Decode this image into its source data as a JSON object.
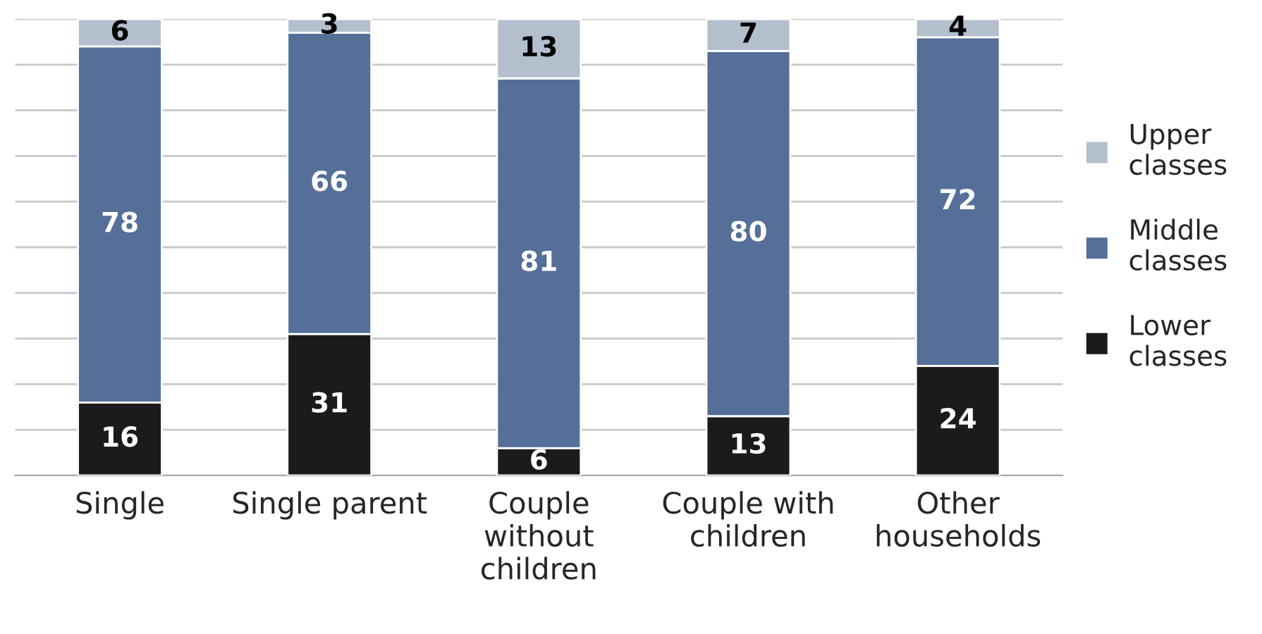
{
  "chart_data": {
    "type": "bar",
    "stacked": true,
    "data_labels": true,
    "grid": "y",
    "legend": "right",
    "tick_labels": "x",
    "categories": [
      "Single",
      "Single parent",
      "Couple\nwithout\nchildren",
      "Couple with\nchildren",
      "Other\nhouseholds"
    ],
    "ylim": [
      0,
      100
    ],
    "yticks": [
      {
        "value": 0,
        "label": null
      },
      {
        "value": 10,
        "label": null
      },
      {
        "value": 20,
        "label": null
      },
      {
        "value": 30,
        "label": null
      },
      {
        "value": 40,
        "label": null
      },
      {
        "value": 50,
        "label": null
      },
      {
        "value": 60,
        "label": null
      },
      {
        "value": 70,
        "label": null
      },
      {
        "value": 80,
        "label": null
      },
      {
        "value": 90,
        "label": null
      },
      {
        "value": 100,
        "label": null
      }
    ],
    "series": [
      {
        "name": "Lower\nclasses",
        "color": "#1b1b1b",
        "values": [
          16,
          31,
          6,
          13,
          24
        ]
      },
      {
        "name": "Middle\nclasses",
        "color": "#566f99",
        "values": [
          78,
          66,
          81,
          80,
          72
        ]
      },
      {
        "name": "Upper\nclasses",
        "color": "#b3bfcd",
        "values": [
          6,
          3,
          13,
          7,
          4
        ]
      }
    ]
  }
}
